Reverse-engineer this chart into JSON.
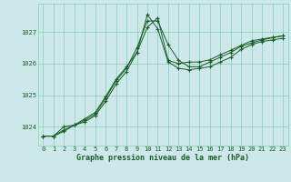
{
  "title": "Graphe pression niveau de la mer (hPa)",
  "bg_color": "#cce8e8",
  "grid_color": "#88ccbb",
  "line_color": "#1a5c2a",
  "xlim": [
    -0.5,
    23.5
  ],
  "ylim": [
    1023.4,
    1027.9
  ],
  "yticks": [
    1024,
    1025,
    1026,
    1027
  ],
  "xticks": [
    0,
    1,
    2,
    3,
    4,
    5,
    6,
    7,
    8,
    9,
    10,
    11,
    12,
    13,
    14,
    15,
    16,
    17,
    18,
    19,
    20,
    21,
    22,
    23
  ],
  "series1": {
    "x": [
      0,
      1,
      2,
      3,
      4,
      5,
      6,
      7,
      8,
      9,
      10,
      11,
      12,
      13,
      14,
      15,
      16,
      17,
      18,
      19,
      20,
      21,
      22,
      23
    ],
    "y": [
      1023.7,
      1023.7,
      1023.85,
      1024.05,
      1024.15,
      1024.35,
      1024.8,
      1025.35,
      1025.75,
      1026.35,
      1027.55,
      1027.1,
      1026.05,
      1025.85,
      1025.8,
      1025.85,
      1025.9,
      1026.05,
      1026.2,
      1026.45,
      1026.6,
      1026.7,
      1026.75,
      1026.8
    ]
  },
  "series2": {
    "x": [
      0,
      1,
      2,
      3,
      4,
      5,
      6,
      7,
      8,
      9,
      10,
      11,
      12,
      13,
      14,
      15,
      16,
      17,
      18,
      19,
      20,
      21,
      22,
      23
    ],
    "y": [
      1023.7,
      1023.7,
      1024.0,
      1024.05,
      1024.2,
      1024.4,
      1024.9,
      1025.45,
      1025.85,
      1026.5,
      1027.35,
      1027.35,
      1026.6,
      1026.1,
      1025.9,
      1025.9,
      1026.05,
      1026.2,
      1026.35,
      1026.55,
      1026.65,
      1026.75,
      1026.82,
      1026.88
    ]
  },
  "series3": {
    "x": [
      0,
      1,
      2,
      3,
      4,
      5,
      6,
      7,
      8,
      9,
      10,
      11,
      12,
      13,
      14,
      15,
      16,
      17,
      18,
      19,
      20,
      21,
      22,
      23
    ],
    "y": [
      1023.7,
      1023.7,
      1023.9,
      1024.05,
      1024.25,
      1024.45,
      1024.95,
      1025.5,
      1025.9,
      1026.35,
      1027.15,
      1027.45,
      1026.1,
      1026.0,
      1026.05,
      1026.05,
      1026.12,
      1026.28,
      1026.42,
      1026.58,
      1026.72,
      1026.78,
      1026.83,
      1026.88
    ]
  },
  "title_fontsize": 6.0,
  "tick_fontsize": 5.0
}
